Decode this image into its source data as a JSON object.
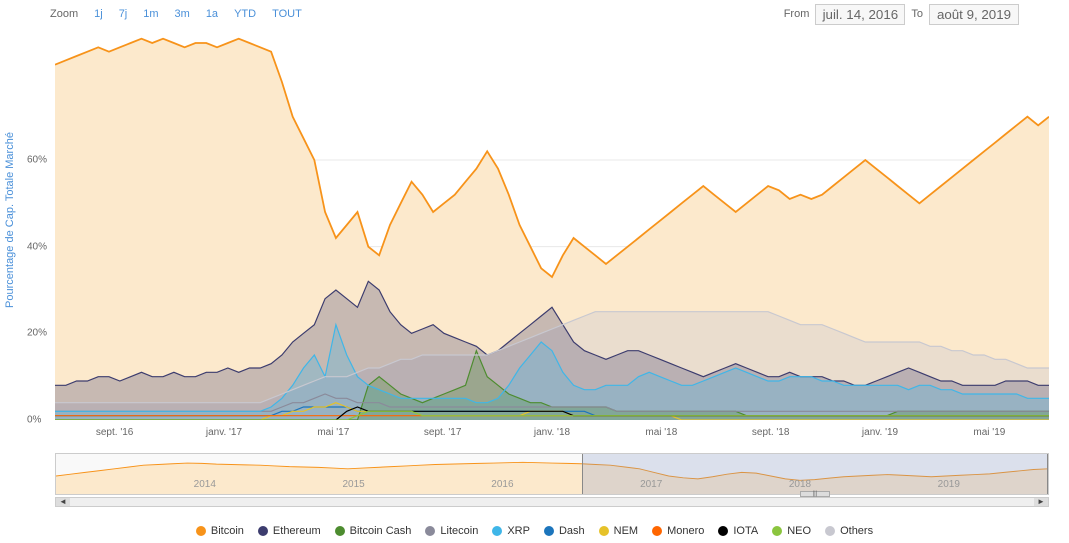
{
  "toolbar": {
    "zoom_label": "Zoom",
    "buttons": [
      "1j",
      "7j",
      "1m",
      "3m",
      "1a",
      "YTD",
      "TOUT"
    ],
    "from_label": "From",
    "from_value": "juil. 14, 2016",
    "to_label": "To",
    "to_value": "août 9, 2019"
  },
  "chart": {
    "type": "area-line",
    "y_axis_label": "Pourcentage de Cap. Totale Marché",
    "y_axis_label_color": "#4a90d9",
    "ylim": [
      0,
      90
    ],
    "y_ticks": [
      0,
      20,
      40,
      60
    ],
    "x_ticks": [
      "sept. '16",
      "janv. '17",
      "mai '17",
      "sept. '17",
      "janv. '18",
      "mai '18",
      "sept. '18",
      "janv. '19",
      "mai '19"
    ],
    "x_tick_positions": [
      6,
      17,
      28,
      39,
      50,
      61,
      72,
      83,
      94
    ],
    "grid_color": "#e8e8e8",
    "background_color": "#ffffff",
    "btc_fill": "#fce9cc",
    "series": {
      "bitcoin": {
        "color": "#f7931a",
        "data": [
          82,
          83,
          84,
          85,
          86,
          85,
          86,
          87,
          88,
          87,
          88,
          87,
          86,
          87,
          87,
          86,
          87,
          88,
          87,
          86,
          85,
          78,
          70,
          65,
          60,
          48,
          42,
          45,
          48,
          40,
          38,
          45,
          50,
          55,
          52,
          48,
          50,
          52,
          55,
          58,
          62,
          58,
          52,
          45,
          40,
          35,
          33,
          38,
          42,
          40,
          38,
          36,
          38,
          40,
          42,
          44,
          46,
          48,
          50,
          52,
          54,
          52,
          50,
          48,
          50,
          52,
          54,
          53,
          51,
          52,
          51,
          52,
          54,
          56,
          58,
          60,
          58,
          56,
          54,
          52,
          50,
          52,
          54,
          56,
          58,
          60,
          62,
          64,
          66,
          68,
          70,
          68,
          70
        ]
      },
      "ethereum": {
        "color": "#3c3c6e",
        "data": [
          8,
          8,
          9,
          9,
          10,
          10,
          9,
          10,
          11,
          10,
          10,
          11,
          10,
          10,
          11,
          11,
          12,
          11,
          12,
          12,
          13,
          15,
          18,
          20,
          22,
          28,
          30,
          28,
          26,
          32,
          30,
          25,
          22,
          20,
          21,
          22,
          20,
          19,
          18,
          17,
          15,
          16,
          18,
          20,
          22,
          24,
          26,
          22,
          18,
          16,
          15,
          14,
          15,
          16,
          16,
          15,
          14,
          13,
          12,
          11,
          10,
          11,
          12,
          13,
          12,
          11,
          10,
          10,
          11,
          10,
          10,
          10,
          9,
          9,
          8,
          8,
          9,
          10,
          11,
          12,
          11,
          10,
          9,
          9,
          8,
          8,
          8,
          8,
          9,
          9,
          9,
          8,
          8
        ]
      },
      "bitcoincash": {
        "color": "#4d8c2f",
        "data": [
          0,
          0,
          0,
          0,
          0,
          0,
          0,
          0,
          0,
          0,
          0,
          0,
          0,
          0,
          0,
          0,
          0,
          0,
          0,
          0,
          0,
          0,
          0,
          0,
          0,
          0,
          0,
          0,
          0,
          8,
          10,
          8,
          6,
          5,
          4,
          5,
          6,
          7,
          8,
          16,
          10,
          8,
          6,
          5,
          4,
          4,
          3,
          3,
          3,
          3,
          3,
          3,
          2,
          2,
          2,
          2,
          2,
          2,
          2,
          2,
          2,
          2,
          2,
          2,
          1,
          1,
          1,
          1,
          1,
          1,
          1,
          1,
          1,
          1,
          1,
          1,
          1,
          1,
          2,
          2,
          2,
          2,
          2,
          2,
          2,
          2,
          2,
          2,
          2,
          2,
          2,
          2,
          2
        ]
      },
      "litecoin": {
        "color": "#8a8a9a",
        "data": [
          2,
          2,
          2,
          2,
          2,
          2,
          2,
          2,
          2,
          2,
          2,
          2,
          2,
          2,
          2,
          2,
          2,
          2,
          2,
          2,
          2,
          3,
          4,
          4,
          5,
          6,
          5,
          5,
          4,
          4,
          4,
          3,
          3,
          3,
          3,
          3,
          3,
          3,
          3,
          3,
          3,
          3,
          3,
          3,
          3,
          3,
          3,
          3,
          3,
          3,
          3,
          3,
          2,
          2,
          2,
          2,
          2,
          2,
          2,
          2,
          2,
          2,
          2,
          2,
          2,
          2,
          2,
          2,
          2,
          2,
          2,
          2,
          2,
          2,
          2,
          2,
          2,
          2,
          2,
          2,
          2,
          2,
          2,
          2,
          2,
          2,
          2,
          2,
          2,
          2,
          2,
          2,
          2
        ]
      },
      "xrp": {
        "color": "#3fb6e8",
        "data": [
          2,
          2,
          2,
          2,
          2,
          2,
          2,
          2,
          2,
          2,
          2,
          2,
          2,
          2,
          2,
          2,
          2,
          2,
          2,
          2,
          3,
          5,
          8,
          12,
          15,
          10,
          22,
          15,
          10,
          8,
          7,
          6,
          5,
          5,
          5,
          5,
          5,
          5,
          5,
          4,
          4,
          5,
          8,
          12,
          15,
          18,
          16,
          11,
          8,
          7,
          7,
          8,
          8,
          8,
          10,
          11,
          10,
          9,
          8,
          8,
          9,
          10,
          11,
          12,
          11,
          10,
          9,
          9,
          10,
          10,
          10,
          9,
          9,
          8,
          8,
          8,
          8,
          8,
          8,
          7,
          8,
          8,
          7,
          7,
          6,
          6,
          6,
          6,
          6,
          6,
          5,
          5,
          5
        ]
      },
      "dash": {
        "color": "#1c75bc",
        "data": [
          1,
          1,
          1,
          1,
          1,
          1,
          1,
          1,
          1,
          1,
          1,
          1,
          1,
          1,
          1,
          1,
          1,
          1,
          1,
          1,
          1,
          2,
          2,
          3,
          3,
          3,
          3,
          3,
          2,
          2,
          2,
          2,
          2,
          2,
          2,
          2,
          2,
          2,
          2,
          2,
          2,
          2,
          2,
          2,
          2,
          2,
          2,
          2,
          2,
          2,
          1,
          1,
          1,
          1,
          1,
          1,
          1,
          1,
          1,
          1,
          1,
          1,
          1,
          1,
          1,
          1,
          1,
          1,
          1,
          1,
          1,
          1,
          1,
          1,
          1,
          1,
          1,
          1,
          1,
          1,
          1,
          1,
          1,
          1,
          1,
          1,
          1,
          1,
          1,
          1,
          1,
          1,
          1
        ]
      },
      "nem": {
        "color": "#e6c229",
        "data": [
          0,
          0,
          0,
          0,
          0,
          0,
          0,
          0,
          0,
          0,
          0,
          0,
          0,
          0,
          0,
          0,
          0,
          0,
          0,
          0,
          1,
          1,
          2,
          2,
          3,
          3,
          4,
          3,
          2,
          2,
          2,
          2,
          2,
          2,
          1,
          1,
          1,
          1,
          1,
          1,
          1,
          1,
          1,
          1,
          2,
          2,
          2,
          2,
          1,
          1,
          1,
          1,
          1,
          1,
          1,
          1,
          1,
          1,
          0,
          0,
          0,
          0,
          0,
          0,
          0,
          0,
          0,
          0,
          0,
          0,
          0,
          0,
          0,
          0,
          0,
          0,
          0,
          0,
          0,
          0,
          0,
          0,
          0,
          0,
          0,
          0,
          0,
          0,
          0,
          0,
          0,
          0,
          0
        ]
      },
      "monero": {
        "color": "#ff6600",
        "data": [
          1,
          1,
          1,
          1,
          1,
          1,
          1,
          1,
          1,
          1,
          1,
          1,
          1,
          1,
          1,
          1,
          1,
          1,
          1,
          1,
          1,
          1,
          1,
          1,
          1,
          1,
          1,
          1,
          1,
          1,
          1,
          1,
          1,
          1,
          1,
          1,
          1,
          1,
          1,
          1,
          1,
          1,
          1,
          1,
          1,
          1,
          1,
          1,
          1,
          1,
          1,
          1,
          1,
          1,
          1,
          1,
          1,
          1,
          1,
          1,
          1,
          1,
          1,
          1,
          1,
          1,
          1,
          1,
          1,
          1,
          1,
          1,
          1,
          1,
          1,
          1,
          1,
          1,
          1,
          1,
          1,
          1,
          1,
          1,
          1,
          1,
          1,
          1,
          1,
          1,
          1,
          1,
          1
        ]
      },
      "iota": {
        "color": "#000000",
        "data": [
          0,
          0,
          0,
          0,
          0,
          0,
          0,
          0,
          0,
          0,
          0,
          0,
          0,
          0,
          0,
          0,
          0,
          0,
          0,
          0,
          0,
          0,
          0,
          0,
          0,
          0,
          0,
          2,
          3,
          2,
          2,
          2,
          2,
          2,
          2,
          2,
          2,
          2,
          2,
          2,
          2,
          2,
          2,
          2,
          2,
          2,
          2,
          2,
          1,
          1,
          1,
          1,
          1,
          1,
          1,
          1,
          1,
          1,
          1,
          1,
          1,
          1,
          1,
          1,
          1,
          1,
          1,
          1,
          1,
          1,
          1,
          1,
          1,
          1,
          1,
          1,
          1,
          1,
          1,
          1,
          1,
          1,
          1,
          1,
          1,
          1,
          1,
          1,
          1,
          1,
          1,
          1,
          1
        ]
      },
      "neo": {
        "color": "#8bc53f",
        "data": [
          0,
          0,
          0,
          0,
          0,
          0,
          0,
          0,
          0,
          0,
          0,
          0,
          0,
          0,
          0,
          0,
          0,
          0,
          0,
          0,
          0,
          0,
          0,
          0,
          0,
          0,
          0,
          0,
          1,
          2,
          2,
          2,
          2,
          2,
          1,
          1,
          1,
          1,
          1,
          1,
          1,
          1,
          1,
          1,
          1,
          1,
          1,
          1,
          1,
          1,
          1,
          1,
          1,
          1,
          1,
          1,
          1,
          1,
          1,
          1,
          1,
          1,
          1,
          1,
          1,
          1,
          1,
          1,
          1,
          1,
          1,
          1,
          1,
          1,
          1,
          1,
          1,
          1,
          1,
          1,
          1,
          1,
          1,
          1,
          1,
          1,
          1,
          1,
          1,
          1,
          1,
          1,
          1
        ]
      },
      "others": {
        "color": "#c8c8d0",
        "data": [
          4,
          4,
          4,
          4,
          4,
          4,
          4,
          4,
          4,
          4,
          4,
          4,
          4,
          4,
          4,
          4,
          4,
          4,
          4,
          4,
          5,
          6,
          7,
          8,
          9,
          10,
          10,
          10,
          11,
          12,
          12,
          13,
          14,
          14,
          15,
          15,
          15,
          15,
          15,
          15,
          15,
          16,
          17,
          18,
          19,
          20,
          21,
          22,
          23,
          24,
          25,
          25,
          25,
          25,
          25,
          25,
          25,
          25,
          25,
          25,
          25,
          25,
          25,
          25,
          25,
          25,
          25,
          24,
          23,
          22,
          22,
          22,
          21,
          20,
          19,
          18,
          18,
          18,
          18,
          18,
          18,
          17,
          17,
          16,
          16,
          15,
          15,
          14,
          14,
          13,
          12,
          12,
          12
        ]
      }
    }
  },
  "navigator": {
    "ticks": [
      "2014",
      "2015",
      "2016",
      "2017",
      "2018",
      "2019"
    ],
    "tick_positions": [
      15,
      30,
      45,
      60,
      75,
      90
    ],
    "selection_start_pct": 53,
    "selection_end_pct": 100,
    "line_color": "#f7931a",
    "data": [
      50,
      55,
      60,
      65,
      70,
      75,
      80,
      82,
      84,
      86,
      85,
      83,
      82,
      81,
      80,
      78,
      76,
      75,
      74,
      72,
      70,
      72,
      74,
      76,
      78,
      80,
      82,
      83,
      84,
      85,
      86,
      87,
      88,
      87,
      86,
      85,
      84,
      82,
      80,
      75,
      70,
      60,
      50,
      45,
      42,
      48,
      55,
      60,
      58,
      50,
      42,
      38,
      40,
      44,
      48,
      50,
      52,
      54,
      52,
      50,
      48,
      50,
      52,
      54,
      56,
      60,
      64,
      68,
      70
    ]
  },
  "legend": {
    "items": [
      {
        "label": "Bitcoin",
        "color": "#f7931a"
      },
      {
        "label": "Ethereum",
        "color": "#3c3c6e"
      },
      {
        "label": "Bitcoin Cash",
        "color": "#4d8c2f"
      },
      {
        "label": "Litecoin",
        "color": "#8a8a9a"
      },
      {
        "label": "XRP",
        "color": "#3fb6e8"
      },
      {
        "label": "Dash",
        "color": "#1c75bc"
      },
      {
        "label": "NEM",
        "color": "#e6c229"
      },
      {
        "label": "Monero",
        "color": "#ff6600"
      },
      {
        "label": "IOTA",
        "color": "#000000"
      },
      {
        "label": "NEO",
        "color": "#8bc53f"
      },
      {
        "label": "Others",
        "color": "#c8c8d0"
      }
    ]
  }
}
